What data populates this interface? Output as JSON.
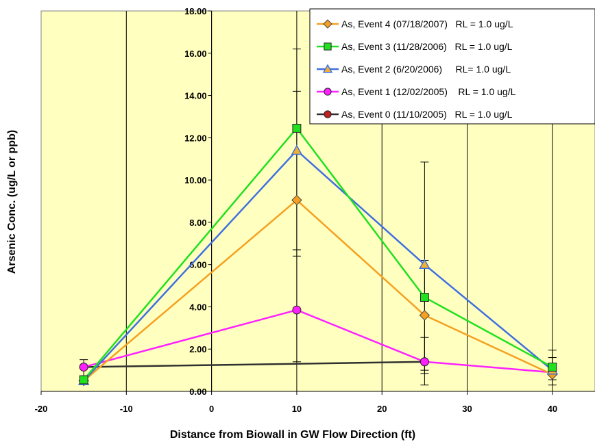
{
  "chart_data": {
    "type": "line",
    "xlabel": "Distance from Biowall in GW Flow Direction (ft)",
    "ylabel": "Arsenic Conc. (ug/L or ppb)",
    "xlim": [
      -20,
      45
    ],
    "ylim": [
      0,
      18
    ],
    "x_ticks": [
      "-20",
      "-10",
      "0",
      "10",
      "20",
      "30",
      "40"
    ],
    "x_tick_values": [
      -20,
      -10,
      0,
      10,
      20,
      30,
      40
    ],
    "y_ticks": [
      "0.00",
      "2.00",
      "4.00",
      "6.00",
      "8.00",
      "10.00",
      "12.00",
      "14.00",
      "16.00",
      "18.00"
    ],
    "y_tick_values": [
      0,
      2,
      4,
      6,
      8,
      10,
      12,
      14,
      16,
      18
    ],
    "grid": "vertical gridlines",
    "plot_background": "#ffffc0",
    "legend_position": "top-right",
    "series": [
      {
        "name": "As, Event 4 (07/18/2007)   RL = 1.0 ug/L",
        "color": "#f5a020",
        "marker": "diamond",
        "marker_fill": "#f5a020",
        "x": [
          -15,
          10,
          25,
          40
        ],
        "y": [
          0.5,
          9.05,
          3.6,
          0.8
        ]
      },
      {
        "name": "As, Event 3 (11/28/2006)   RL = 1.0 ug/L",
        "color": "#20e020",
        "marker": "square",
        "marker_fill": "#20e020",
        "x": [
          -15,
          10,
          25,
          40
        ],
        "y": [
          0.55,
          12.45,
          4.45,
          1.15
        ]
      },
      {
        "name": "As, Event 2 (6/20/2006)     RL= 1.0 ug/L",
        "color": "#4070e0",
        "marker": "triangle",
        "marker_fill": "#f0b030",
        "x": [
          -15,
          10,
          25,
          40
        ],
        "y": [
          0.5,
          11.4,
          6.0,
          1.0
        ]
      },
      {
        "name": "As, Event 1 (12/02/2005)    RL = 1.0 ug/L",
        "color": "#ff20ff",
        "marker": "circle",
        "marker_fill": "#ff20ff",
        "x": [
          -15,
          10,
          25,
          40
        ],
        "y": [
          1.15,
          3.85,
          1.4,
          0.9
        ]
      },
      {
        "name": "As, Event 0 (11/10/2005)   RL = 1.0 ug/L",
        "color": "#303030",
        "marker": "circle",
        "marker_fill": "#c02020",
        "x": [
          -15,
          25
        ],
        "y": [
          1.15,
          1.4
        ]
      }
    ],
    "error_bars": [
      {
        "x": -15,
        "low": 0.55,
        "high": 1.5
      },
      {
        "x": 10,
        "low": 1.4,
        "high": 16.2
      },
      {
        "x": 10,
        "low": 6.4,
        "high": 14.2
      },
      {
        "x": 10,
        "low": 6.7,
        "high": 6.7
      },
      {
        "x": 25,
        "low": 0.3,
        "high": 10.85
      },
      {
        "x": 25,
        "low": 0.85,
        "high": 6.2
      },
      {
        "x": 25,
        "low": 1.0,
        "high": 2.55
      },
      {
        "x": 40,
        "low": 0.3,
        "high": 1.95
      },
      {
        "x": 40,
        "low": 0.55,
        "high": 1.6
      }
    ]
  }
}
